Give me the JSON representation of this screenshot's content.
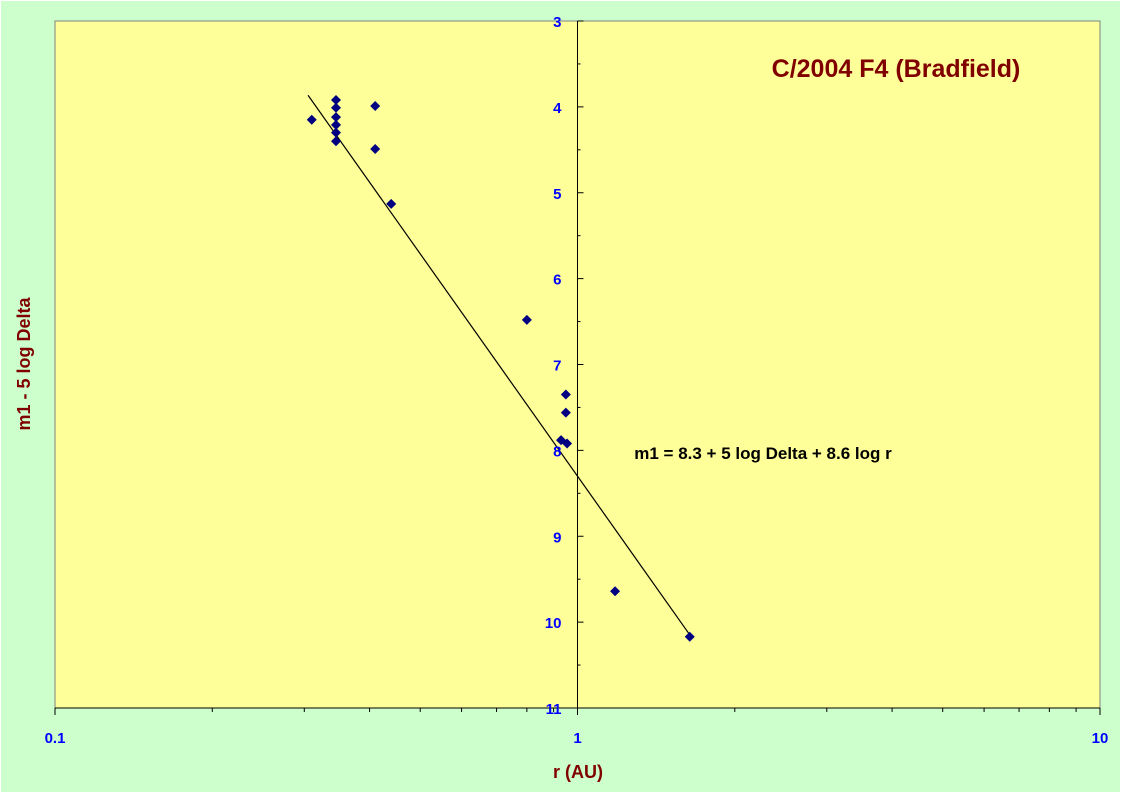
{
  "chart_data": {
    "type": "scatter",
    "title": "C/2004 F4 (Bradfield)",
    "xlabel": "r (AU)",
    "ylabel": "m1 - 5 log Delta",
    "x_scale": "log",
    "xlim": [
      0.1,
      10
    ],
    "ylim": [
      3,
      11
    ],
    "y_inverted": true,
    "x_ticks": [
      "0.1",
      "1",
      "10"
    ],
    "y_ticks": [
      "3",
      "4",
      "5",
      "6",
      "7",
      "8",
      "9",
      "10",
      "11"
    ],
    "grid": false,
    "legend": "none",
    "annotation": "m1 = 8.3 + 5 log Delta + 8.6 log r",
    "series": [
      {
        "points": [
          {
            "x": 0.31,
            "y": 4.15
          },
          {
            "x": 0.345,
            "y": 3.92
          },
          {
            "x": 0.345,
            "y": 4.01
          },
          {
            "x": 0.345,
            "y": 4.12
          },
          {
            "x": 0.345,
            "y": 4.21
          },
          {
            "x": 0.345,
            "y": 4.3
          },
          {
            "x": 0.345,
            "y": 4.4
          },
          {
            "x": 0.41,
            "y": 3.99
          },
          {
            "x": 0.41,
            "y": 4.49
          },
          {
            "x": 0.44,
            "y": 5.13
          },
          {
            "x": 0.8,
            "y": 6.48
          },
          {
            "x": 0.95,
            "y": 7.35
          },
          {
            "x": 0.95,
            "y": 7.56
          },
          {
            "x": 0.93,
            "y": 7.88
          },
          {
            "x": 0.955,
            "y": 7.92
          },
          {
            "x": 1.18,
            "y": 9.64
          },
          {
            "x": 1.64,
            "y": 10.17
          }
        ],
        "color": "#000080",
        "marker": "diamond"
      }
    ],
    "fit_line": {
      "a": 8.3,
      "b": 8.6,
      "x_range": [
        0.305,
        1.64
      ],
      "color": "#000000"
    },
    "colors": {
      "outer_background": "#ccffcc",
      "plot_background": "#ffff99",
      "axis_line": "#000000",
      "tick_text": "#0000ff",
      "title_text": "#800000"
    }
  }
}
